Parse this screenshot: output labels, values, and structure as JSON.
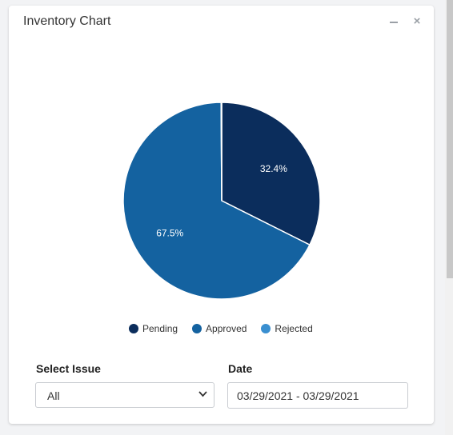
{
  "window": {
    "title": "Inventory Chart",
    "minimize_icon": "minimize-icon",
    "close_label": "×"
  },
  "chart_data": {
    "type": "pie",
    "categories": [
      "Pending",
      "Approved",
      "Rejected"
    ],
    "values": [
      32.4,
      67.5,
      0.1
    ],
    "labels": [
      "32.4%",
      "67.5%",
      ""
    ],
    "colors": [
      "#0b2d5c",
      "#1462a0",
      "#3a8fd0"
    ],
    "legend": "bottom"
  },
  "filters": {
    "issue_label": "Select Issue",
    "issue_value": "All",
    "date_label": "Date",
    "date_value": "03/29/2021 - 03/29/2021"
  }
}
